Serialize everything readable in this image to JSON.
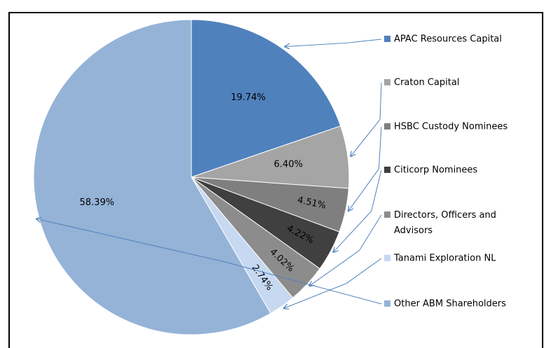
{
  "chart_data": {
    "type": "pie",
    "categories": [
      "APAC Resources Capital",
      "Craton Capital",
      "HSBC Custody Nominees",
      "Citicorp Nominees",
      "Directors, Officers and Advisors",
      "Tanami Exploration NL",
      "Other ABM Shareholders"
    ],
    "values": [
      19.74,
      6.4,
      4.51,
      4.22,
      4.02,
      2.74,
      58.39
    ],
    "value_labels": [
      "19.74%",
      "6.40%",
      "4.51%",
      "4.22%",
      "4.02%",
      "2.74%",
      "58.39%"
    ],
    "colors": [
      "#4f81bd",
      "#a5a5a5",
      "#7f7f7f",
      "#404040",
      "#8c8c8c",
      "#c6d9f1",
      "#95b3d7"
    ],
    "legend": "right"
  }
}
